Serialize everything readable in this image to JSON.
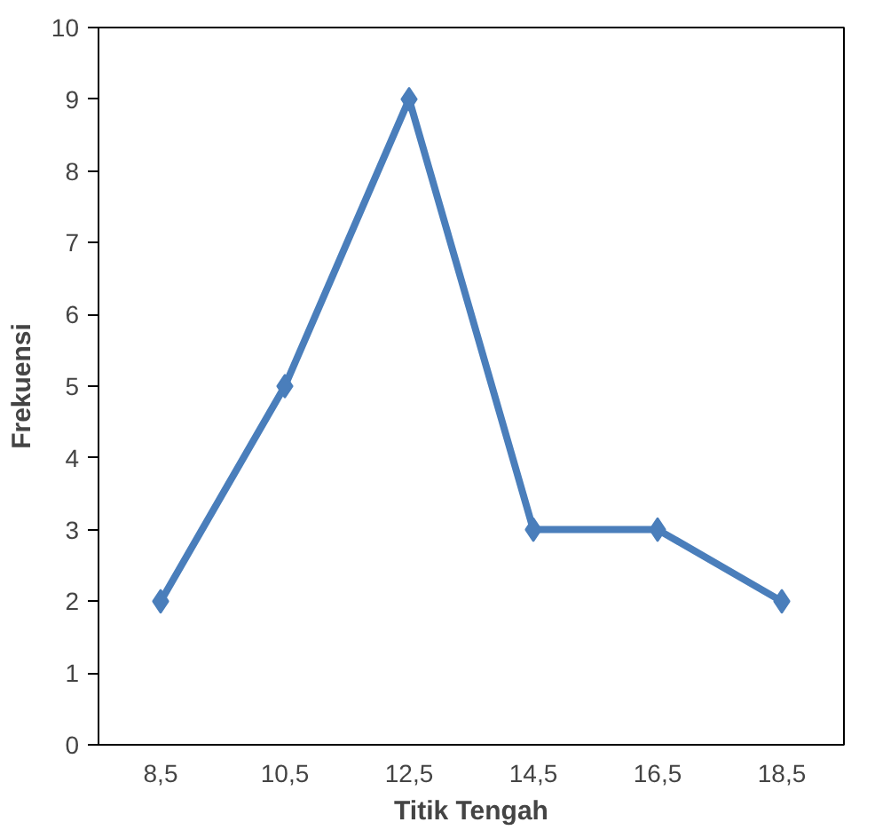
{
  "chart_data": {
    "type": "line",
    "xlabel": "Titik Tengah",
    "ylabel": "Frekuensi",
    "categories": [
      "8,5",
      "10,5",
      "12,5",
      "14,5",
      "16,5",
      "18,5"
    ],
    "series": [
      {
        "color": "#4a7ebb",
        "values": [
          2,
          5,
          9,
          3,
          3,
          2
        ]
      }
    ],
    "ylim": [
      0,
      10
    ],
    "yticks": [
      0,
      1,
      2,
      3,
      4,
      5,
      6,
      7,
      8,
      9,
      10
    ],
    "grid": false,
    "marker": "diamond",
    "line_style": "solid"
  }
}
